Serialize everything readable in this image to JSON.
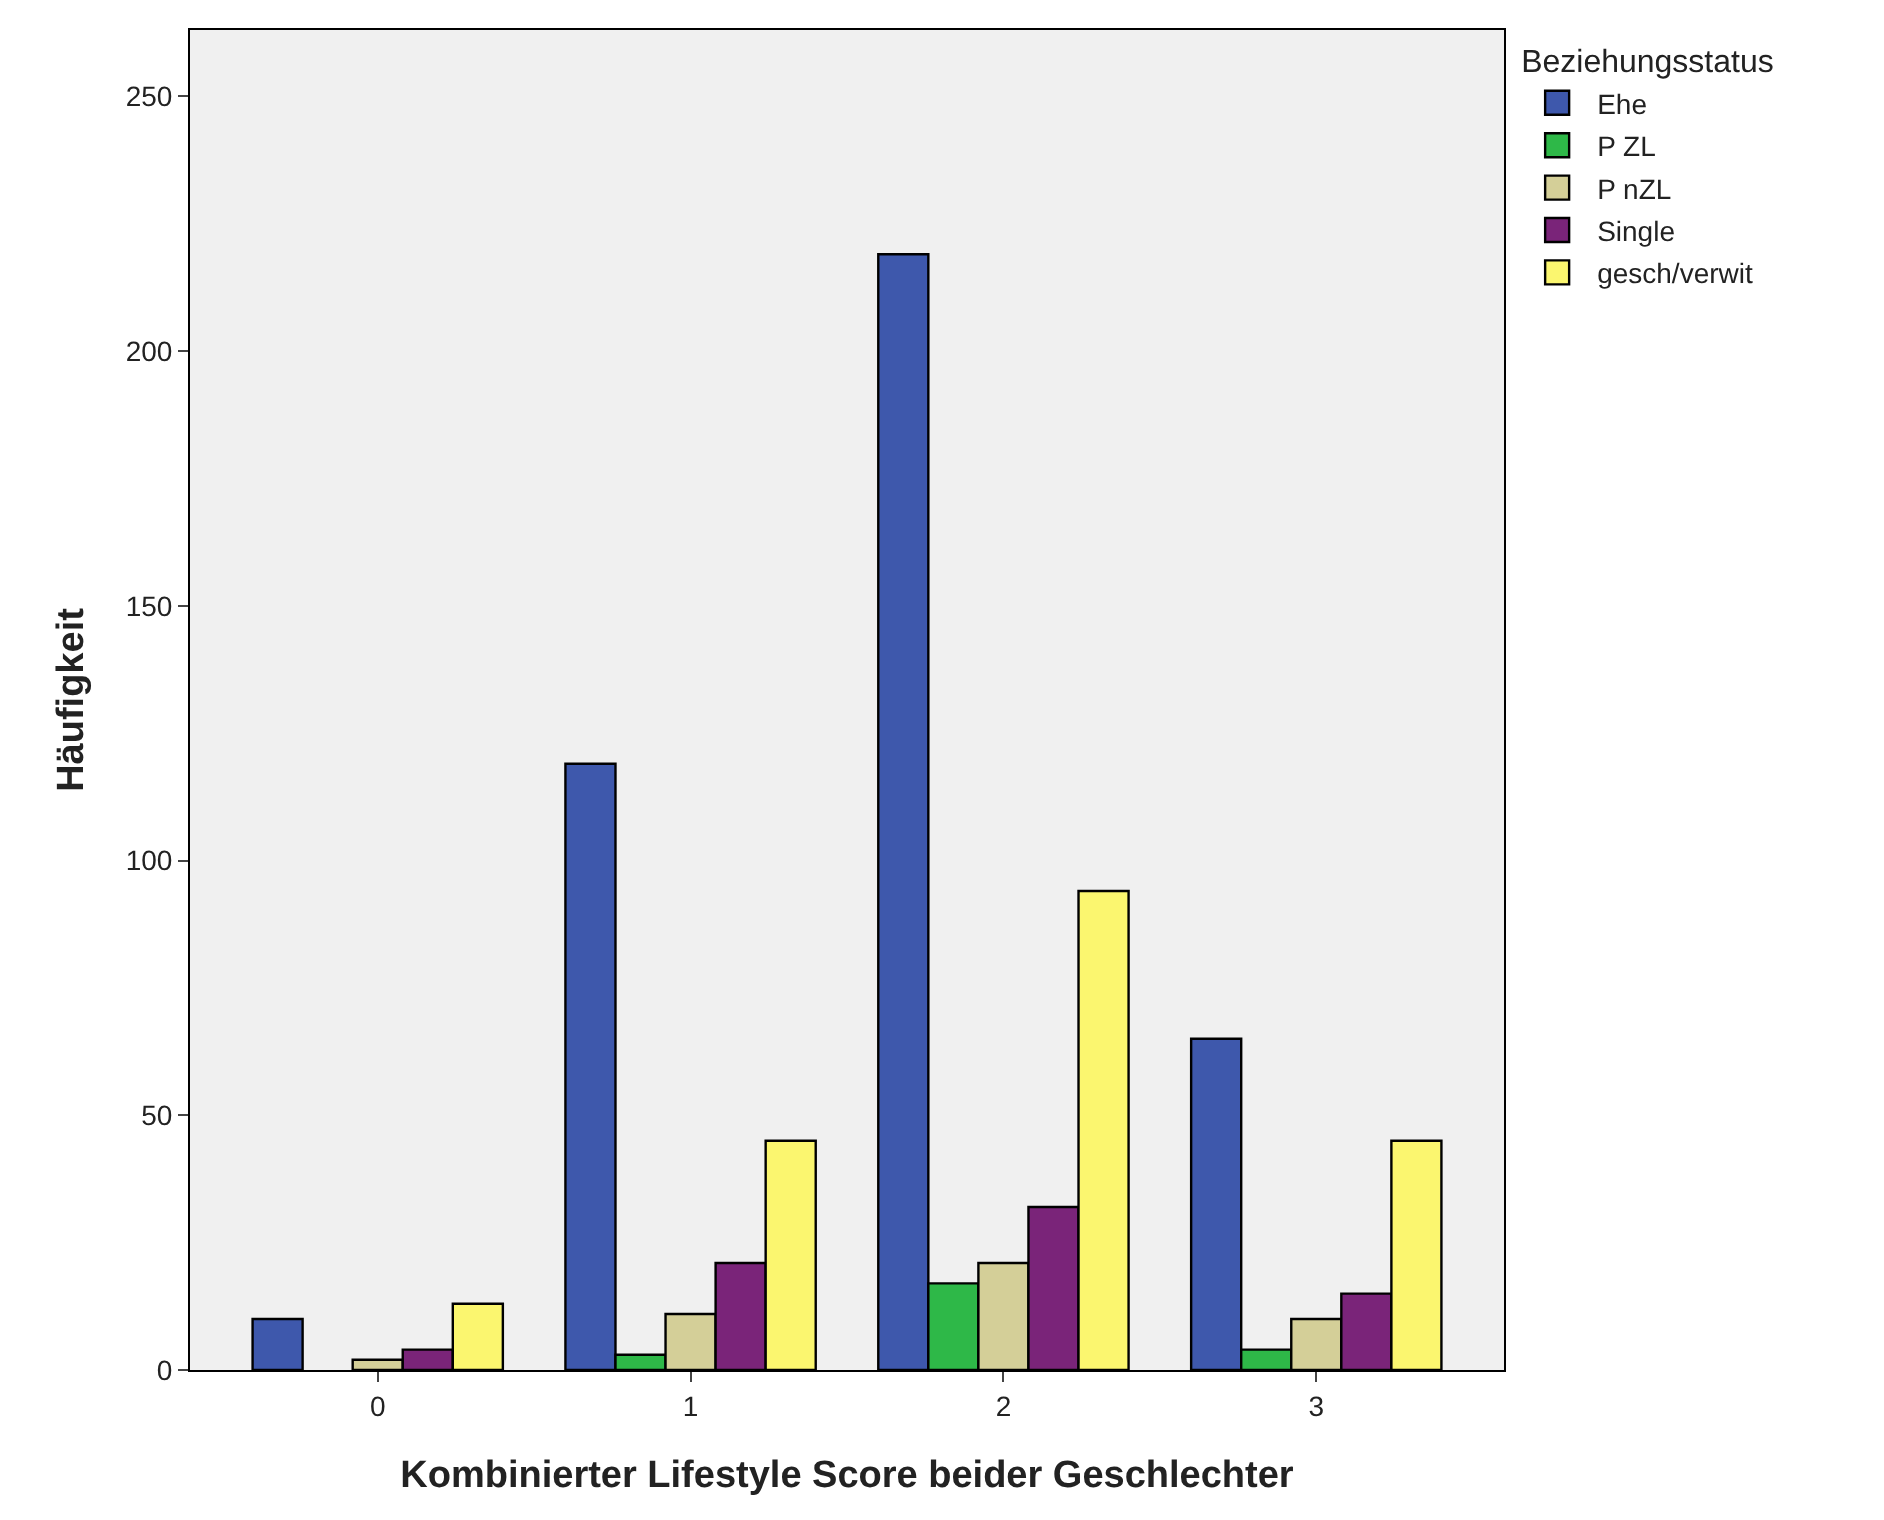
{
  "chart_data": {
    "type": "bar",
    "xlabel": "Kombinierter Lifestyle Score beider Geschlechter",
    "ylabel": "Häufigkeit",
    "legend_title": "Beziehungsstatus",
    "categories": [
      "0",
      "1",
      "2",
      "3"
    ],
    "series": [
      {
        "name": "Ehe",
        "color": "#3e58ac",
        "values": [
          10,
          119,
          219,
          65
        ]
      },
      {
        "name": "P ZL",
        "color": "#2eb848",
        "values": [
          null,
          3,
          17,
          4
        ]
      },
      {
        "name": "P nZL",
        "color": "#d4cf98",
        "values": [
          2,
          11,
          21,
          10
        ]
      },
      {
        "name": "Single",
        "color": "#7a2479",
        "values": [
          4,
          21,
          32,
          15
        ]
      },
      {
        "name": "gesch/verwit",
        "color": "#fbf66f",
        "values": [
          13,
          45,
          94,
          45
        ]
      }
    ],
    "ylim": [
      0,
      263
    ],
    "yticks": [
      0,
      50,
      100,
      150,
      200,
      250
    ],
    "grid": false,
    "legend": "top right"
  }
}
